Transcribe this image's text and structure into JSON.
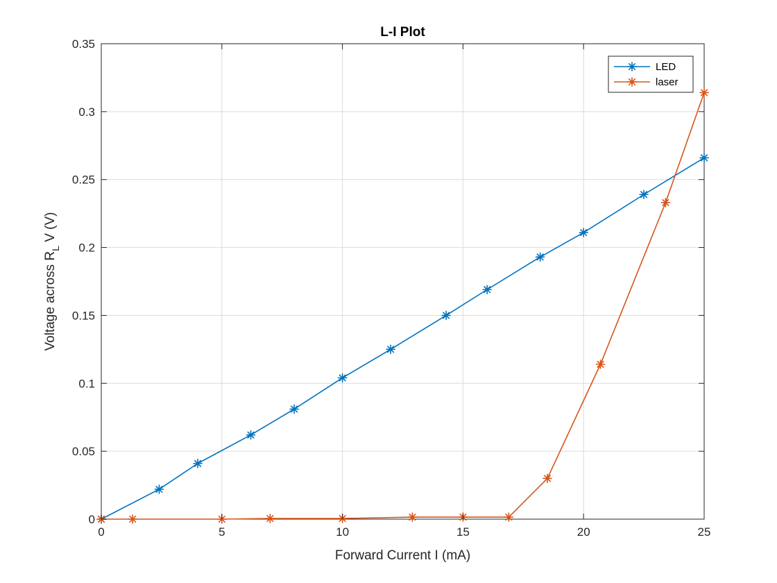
{
  "chart_data": {
    "type": "line",
    "title": "L-I Plot",
    "xlabel": "Forward Current I (mA)",
    "ylabel": {
      "prefix": "Voltage across R",
      "subscript": "L",
      "suffix": " V (V)"
    },
    "xlim": [
      0,
      25
    ],
    "ylim": [
      0,
      0.35
    ],
    "xticks": [
      0,
      5,
      10,
      15,
      20,
      25
    ],
    "xtick_labels": [
      "0",
      "5",
      "10",
      "15",
      "20",
      "25"
    ],
    "yticks": [
      0,
      0.05,
      0.1,
      0.15,
      0.2,
      0.25,
      0.3,
      0.35
    ],
    "ytick_labels": [
      "0",
      "0.05",
      "0.1",
      "0.15",
      "0.2",
      "0.25",
      "0.3",
      "0.35"
    ],
    "grid": true,
    "legend_position": "top-right",
    "marker": "asterisk",
    "series": [
      {
        "name": "LED",
        "color": "#0072BD",
        "x": [
          0,
          2.4,
          4.0,
          6.2,
          8.0,
          10.0,
          12.0,
          14.3,
          16.0,
          18.2,
          20.0,
          22.5,
          25.0
        ],
        "y": [
          0,
          0.022,
          0.041,
          0.062,
          0.081,
          0.104,
          0.125,
          0.15,
          0.169,
          0.193,
          0.211,
          0.239,
          0.266
        ]
      },
      {
        "name": "laser",
        "color": "#D95319",
        "x": [
          0,
          1.3,
          5.0,
          7.0,
          10.0,
          12.9,
          15.0,
          16.9,
          18.5,
          20.7,
          23.4,
          25.0
        ],
        "y": [
          0,
          0,
          0,
          0.0005,
          0.0005,
          0.0015,
          0.0015,
          0.0015,
          0.03,
          0.114,
          0.233,
          0.314
        ]
      }
    ]
  }
}
